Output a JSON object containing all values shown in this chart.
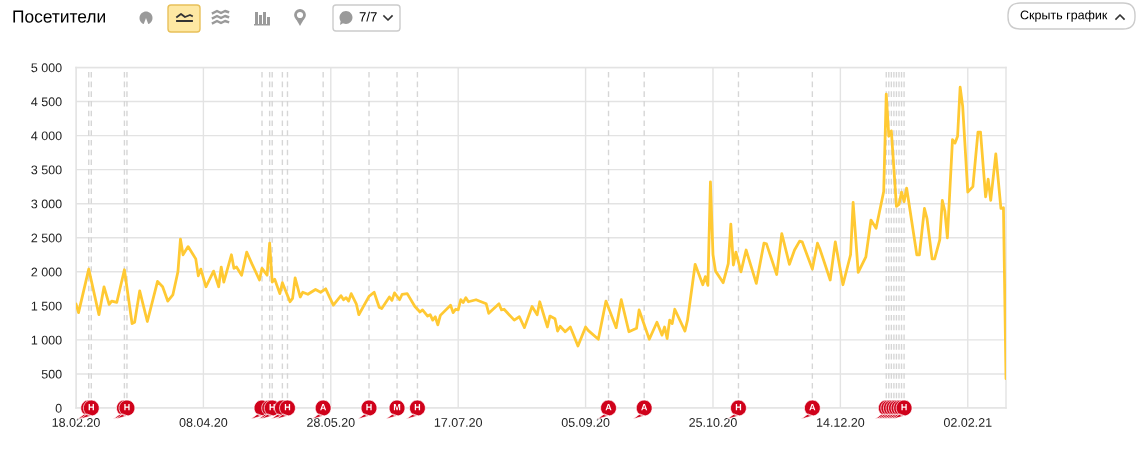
{
  "chart_data": {
    "type": "line",
    "title": "Посетители",
    "annotations": [
      "7/7",
      "Скрыть график"
    ],
    "x": [
      "2020-02-18",
      "2020-02-19",
      "2020-02-23",
      "2020-02-27",
      "2020-02-29",
      "2020-03-02",
      "2020-03-03",
      "2020-03-05",
      "2020-03-08",
      "2020-03-11",
      "2020-03-12",
      "2020-03-14",
      "2020-03-17",
      "2020-03-21",
      "2020-03-23",
      "2020-03-25",
      "2020-03-27",
      "2020-03-29",
      "2020-03-30",
      "2020-03-31",
      "2020-04-02",
      "2020-04-05",
      "2020-04-06",
      "2020-04-07",
      "2020-04-09",
      "2020-04-12",
      "2020-04-14",
      "2020-04-15",
      "2020-04-16",
      "2020-04-19",
      "2020-04-20",
      "2020-04-21",
      "2020-04-23",
      "2020-04-25",
      "2020-04-27",
      "2020-04-30",
      "2020-05-01",
      "2020-05-03",
      "2020-05-04",
      "2020-05-05",
      "2020-05-06",
      "2020-05-08",
      "2020-05-09",
      "2020-05-12",
      "2020-05-13",
      "2020-05-14",
      "2020-05-16",
      "2020-05-17",
      "2020-05-19",
      "2020-05-22",
      "2020-05-24",
      "2020-05-26",
      "2020-05-29",
      "2020-06-01",
      "2020-06-02",
      "2020-06-03",
      "2020-06-04",
      "2020-06-05",
      "2020-06-07",
      "2020-06-08",
      "2020-06-12",
      "2020-06-14",
      "2020-06-16",
      "2020-06-17",
      "2020-06-20",
      "2020-06-21",
      "2020-06-22",
      "2020-06-24",
      "2020-06-25",
      "2020-06-27",
      "2020-06-30",
      "2020-07-02",
      "2020-07-03",
      "2020-07-05",
      "2020-07-06",
      "2020-07-07",
      "2020-07-08",
      "2020-07-09",
      "2020-07-10",
      "2020-07-14",
      "2020-07-15",
      "2020-07-16",
      "2020-07-17",
      "2020-07-18",
      "2020-07-19",
      "2020-07-20",
      "2020-07-21",
      "2020-07-24",
      "2020-07-28",
      "2020-07-29",
      "2020-08-02",
      "2020-08-03",
      "2020-08-04",
      "2020-08-08",
      "2020-08-10",
      "2020-08-12",
      "2020-08-15",
      "2020-08-17",
      "2020-08-18",
      "2020-08-21",
      "2020-08-22",
      "2020-08-24",
      "2020-08-25",
      "2020-08-26",
      "2020-08-28",
      "2020-08-30",
      "2020-09-02",
      "2020-09-05",
      "2020-09-06",
      "2020-09-10",
      "2020-09-13",
      "2020-09-17",
      "2020-09-19",
      "2020-09-22",
      "2020-09-25",
      "2020-09-26",
      "2020-09-30",
      "2020-10-03",
      "2020-10-05",
      "2020-10-06",
      "2020-10-07",
      "2020-10-08",
      "2020-10-09",
      "2020-10-10",
      "2020-10-14",
      "2020-10-15",
      "2020-10-18",
      "2020-10-21",
      "2020-10-22",
      "2020-10-23",
      "2020-10-24",
      "2020-10-25",
      "2020-10-26",
      "2020-10-29",
      "2020-10-31",
      "2020-11-01",
      "2020-11-02",
      "2020-11-03",
      "2020-11-05",
      "2020-11-07",
      "2020-11-11",
      "2020-11-14",
      "2020-11-15",
      "2020-11-19",
      "2020-11-21",
      "2020-11-24",
      "2020-11-26",
      "2020-11-28",
      "2020-11-29",
      "2020-12-03",
      "2020-12-05",
      "2020-12-06",
      "2020-12-10",
      "2020-12-12",
      "2020-12-15",
      "2020-12-18",
      "2020-12-19",
      "2020-12-21",
      "2020-12-24",
      "2020-12-26",
      "2020-12-28",
      "2020-12-31",
      "2021-01-01",
      "2021-01-02",
      "2021-01-03",
      "2021-01-05",
      "2021-01-06",
      "2021-01-07",
      "2021-01-08",
      "2021-01-09",
      "2021-01-13",
      "2021-01-14",
      "2021-01-16",
      "2021-01-17",
      "2021-01-19",
      "2021-01-20",
      "2021-01-22",
      "2021-01-23",
      "2021-01-24",
      "2021-01-25",
      "2021-01-27",
      "2021-01-28",
      "2021-01-29",
      "2021-01-30",
      "2021-01-31",
      "2021-02-02",
      "2021-02-04",
      "2021-02-06",
      "2021-02-07",
      "2021-02-09",
      "2021-02-10",
      "2021-02-11",
      "2021-02-13",
      "2021-02-15",
      "2021-02-16",
      "2021-02-17"
    ],
    "series": [
      {
        "color": "#ffc933",
        "values": [
          1530,
          1400,
          2040,
          1370,
          1780,
          1520,
          1570,
          1550,
          2030,
          1240,
          1260,
          1720,
          1270,
          1860,
          1780,
          1570,
          1660,
          2000,
          2480,
          2250,
          2370,
          2190,
          1940,
          2040,
          1780,
          2010,
          1780,
          2070,
          1850,
          2250,
          2050,
          2070,
          1950,
          2290,
          2120,
          1880,
          2050,
          1950,
          2420,
          1850,
          1890,
          1680,
          1840,
          1560,
          1610,
          1910,
          1630,
          1700,
          1670,
          1740,
          1700,
          1750,
          1510,
          1650,
          1590,
          1620,
          1570,
          1680,
          1530,
          1370,
          1640,
          1700,
          1480,
          1460,
          1630,
          1580,
          1690,
          1590,
          1670,
          1680,
          1490,
          1410,
          1440,
          1350,
          1370,
          1290,
          1340,
          1220,
          1360,
          1510,
          1400,
          1450,
          1440,
          1590,
          1550,
          1620,
          1560,
          1590,
          1530,
          1390,
          1530,
          1440,
          1450,
          1290,
          1340,
          1180,
          1490,
          1370,
          1560,
          1190,
          1350,
          1310,
          1130,
          1200,
          1120,
          1190,
          910,
          1190,
          1140,
          1010,
          1570,
          1180,
          1590,
          1120,
          1170,
          1440,
          1010,
          1260,
          1070,
          1190,
          1020,
          1290,
          1240,
          1450,
          1130,
          1290,
          2110,
          1810,
          1930,
          1800,
          3320,
          2250,
          2010,
          1840,
          2120,
          2700,
          2100,
          2290,
          2000,
          2320,
          1830,
          2420,
          2410,
          1960,
          2560,
          2110,
          2320,
          2450,
          2440,
          2040,
          2420,
          2330,
          1880,
          2440,
          1810,
          2250,
          3020,
          1990,
          2220,
          2760,
          2640,
          3180,
          4610,
          3990,
          4070,
          2960,
          2990,
          3170,
          3030,
          3230,
          2250,
          2250,
          2930,
          2780,
          2190,
          2190,
          2470,
          3050,
          2890,
          2500,
          3940,
          3890,
          3990,
          4710,
          4430,
          3170,
          3250,
          4050,
          4050,
          3100,
          3360,
          3050,
          3730,
          2930,
          2940,
          430
        ]
      }
    ],
    "xlim": [
      "2020-02-18",
      "2021-02-17"
    ],
    "xticks": [
      {
        "value": "2020-02-18",
        "label": "18.02.20"
      },
      {
        "value": "2020-04-08",
        "label": "08.04.20"
      },
      {
        "value": "2020-05-28",
        "label": "28.05.20"
      },
      {
        "value": "2020-07-17",
        "label": "17.07.20"
      },
      {
        "value": "2020-09-05",
        "label": "05.09.20"
      },
      {
        "value": "2020-10-25",
        "label": "25.10.20"
      },
      {
        "value": "2020-12-14",
        "label": "14.12.20"
      },
      {
        "value": "2021-02-02",
        "label": "02.02.21"
      }
    ],
    "ylim": [
      0,
      5000
    ],
    "yticks": [
      0,
      500,
      {
        "value": 1000,
        "label": "1 000"
      },
      {
        "value": 1500,
        "label": "1 500"
      },
      {
        "value": 2000,
        "label": "2 000"
      },
      {
        "value": 2500,
        "label": "2 500"
      },
      {
        "value": 3000,
        "label": "3 000"
      },
      {
        "value": 3500,
        "label": "3 500"
      },
      {
        "value": 4000,
        "label": "4 000"
      },
      {
        "value": 4500,
        "label": "4 500"
      },
      {
        "value": 5000,
        "label": "5 000"
      }
    ],
    "grid": true,
    "ref_lines": [
      {
        "axis": "x",
        "value": "2020-02-23",
        "line_style": "dashed"
      },
      {
        "axis": "x",
        "value": "2020-02-24",
        "label": "Н",
        "line_style": "dashed"
      },
      {
        "axis": "x",
        "value": "2020-03-08",
        "line_style": "dashed"
      },
      {
        "axis": "x",
        "value": "2020-03-09",
        "label": "Н",
        "line_style": "dashed"
      },
      {
        "axis": "x",
        "value": "2020-05-01",
        "line_style": "dashed"
      },
      {
        "axis": "x",
        "value": "2020-05-04",
        "line_style": "dashed"
      },
      {
        "axis": "x",
        "value": "2020-05-05",
        "label": "Н",
        "line_style": "dashed"
      },
      {
        "axis": "x",
        "value": "2020-05-09",
        "line_style": "dashed"
      },
      {
        "axis": "x",
        "value": "2020-05-11",
        "label": "Н",
        "line_style": "dashed"
      },
      {
        "axis": "x",
        "value": "2020-05-25",
        "label": "А",
        "line_style": "dashed"
      },
      {
        "axis": "x",
        "value": "2020-06-12",
        "label": "Н",
        "line_style": "dashed"
      },
      {
        "axis": "x",
        "value": "2020-06-23",
        "label": "М",
        "line_style": "dashed"
      },
      {
        "axis": "x",
        "value": "2020-07-01",
        "label": "Н",
        "line_style": "dashed"
      },
      {
        "axis": "x",
        "value": "2020-09-14",
        "label": "А",
        "line_style": "dashed"
      },
      {
        "axis": "x",
        "value": "2020-09-28",
        "label": "А",
        "line_style": "dashed"
      },
      {
        "axis": "x",
        "value": "2020-11-04",
        "label": "Н",
        "line_style": "dashed"
      },
      {
        "axis": "x",
        "value": "2020-12-03",
        "label": "А",
        "line_style": "dashed"
      },
      {
        "axis": "x",
        "value": "2021-01-01",
        "line_style": "dashed"
      },
      {
        "axis": "x",
        "value": "2021-01-02",
        "line_style": "dashed"
      },
      {
        "axis": "x",
        "value": "2021-01-03",
        "line_style": "dashed"
      },
      {
        "axis": "x",
        "value": "2021-01-04",
        "line_style": "dashed"
      },
      {
        "axis": "x",
        "value": "2021-01-05",
        "line_style": "dashed"
      },
      {
        "axis": "x",
        "value": "2021-01-06",
        "line_style": "dashed"
      },
      {
        "axis": "x",
        "value": "2021-01-07",
        "line_style": "dashed"
      },
      {
        "axis": "x",
        "value": "2021-01-08",
        "label": "Н",
        "line_style": "dashed"
      }
    ]
  }
}
